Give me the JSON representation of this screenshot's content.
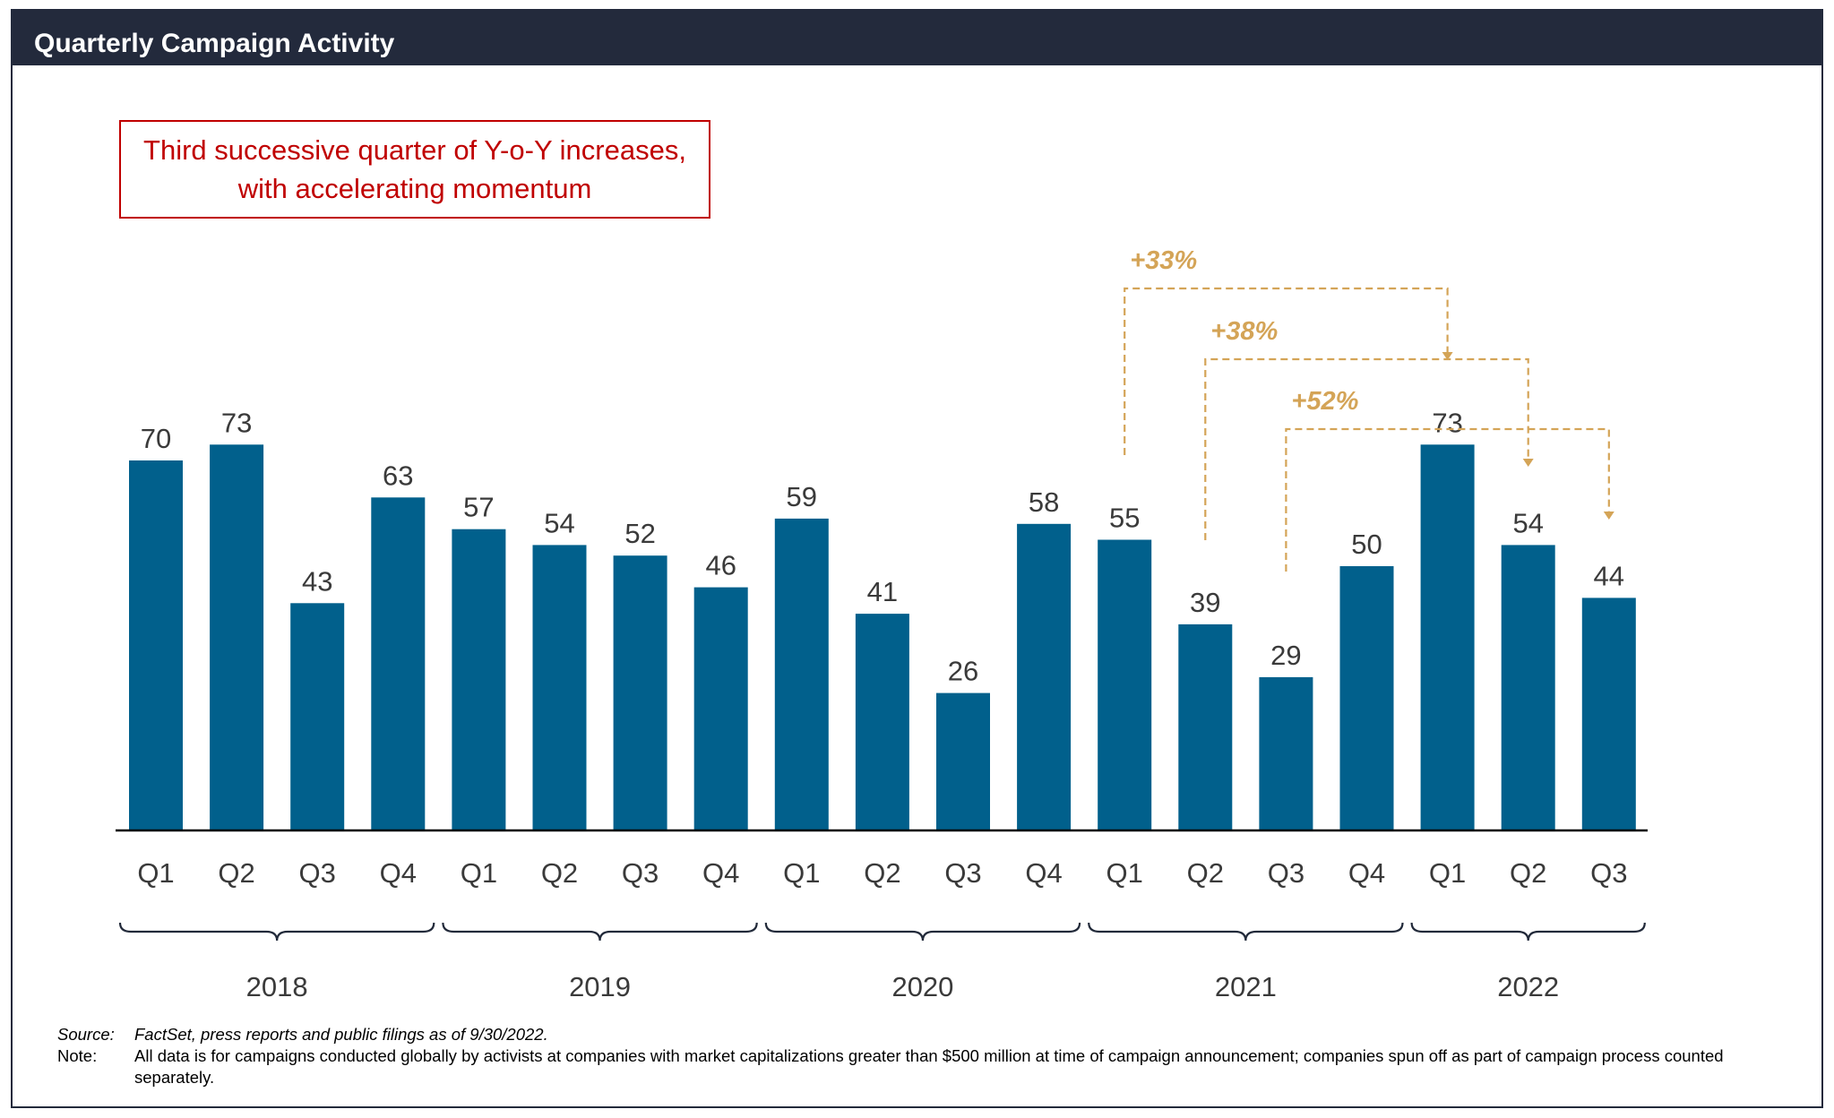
{
  "title": "Quarterly Campaign Activity",
  "callout": {
    "line1": "Third successive quarter of Y-o-Y increases,",
    "line2": "with accelerating momentum"
  },
  "colors": {
    "bar": "#01608c",
    "header": "#232a3c",
    "callout": "#c00000",
    "growth": "#d4a457"
  },
  "chart_data": {
    "type": "bar",
    "categories": [
      "Q1",
      "Q2",
      "Q3",
      "Q4",
      "Q1",
      "Q2",
      "Q3",
      "Q4",
      "Q1",
      "Q2",
      "Q3",
      "Q4",
      "Q1",
      "Q2",
      "Q3",
      "Q4",
      "Q1",
      "Q2",
      "Q3"
    ],
    "years": [
      {
        "label": "2018",
        "quarters": 4
      },
      {
        "label": "2019",
        "quarters": 4
      },
      {
        "label": "2020",
        "quarters": 4
      },
      {
        "label": "2021",
        "quarters": 4
      },
      {
        "label": "2022",
        "quarters": 3
      }
    ],
    "values": [
      70,
      73,
      43,
      63,
      57,
      54,
      52,
      46,
      59,
      41,
      26,
      58,
      55,
      39,
      29,
      50,
      73,
      54,
      44
    ],
    "ylim": [
      0,
      80
    ],
    "xlabel": "",
    "ylabel": "",
    "grid": false,
    "data_labels": true,
    "annotations": [
      {
        "label": "+33%",
        "from_index": 12,
        "to_index": 16
      },
      {
        "label": "+38%",
        "from_index": 13,
        "to_index": 17
      },
      {
        "label": "+52%",
        "from_index": 14,
        "to_index": 18
      }
    ]
  },
  "notes": {
    "source_label": "Source:",
    "source_text": "FactSet, press reports and public filings as of 9/30/2022.",
    "note_label": "Note:",
    "note_text": "All data is for campaigns conducted globally by activists at companies with market capitalizations greater than $500 million at time of campaign announcement; companies spun off as part of campaign process counted separately."
  }
}
